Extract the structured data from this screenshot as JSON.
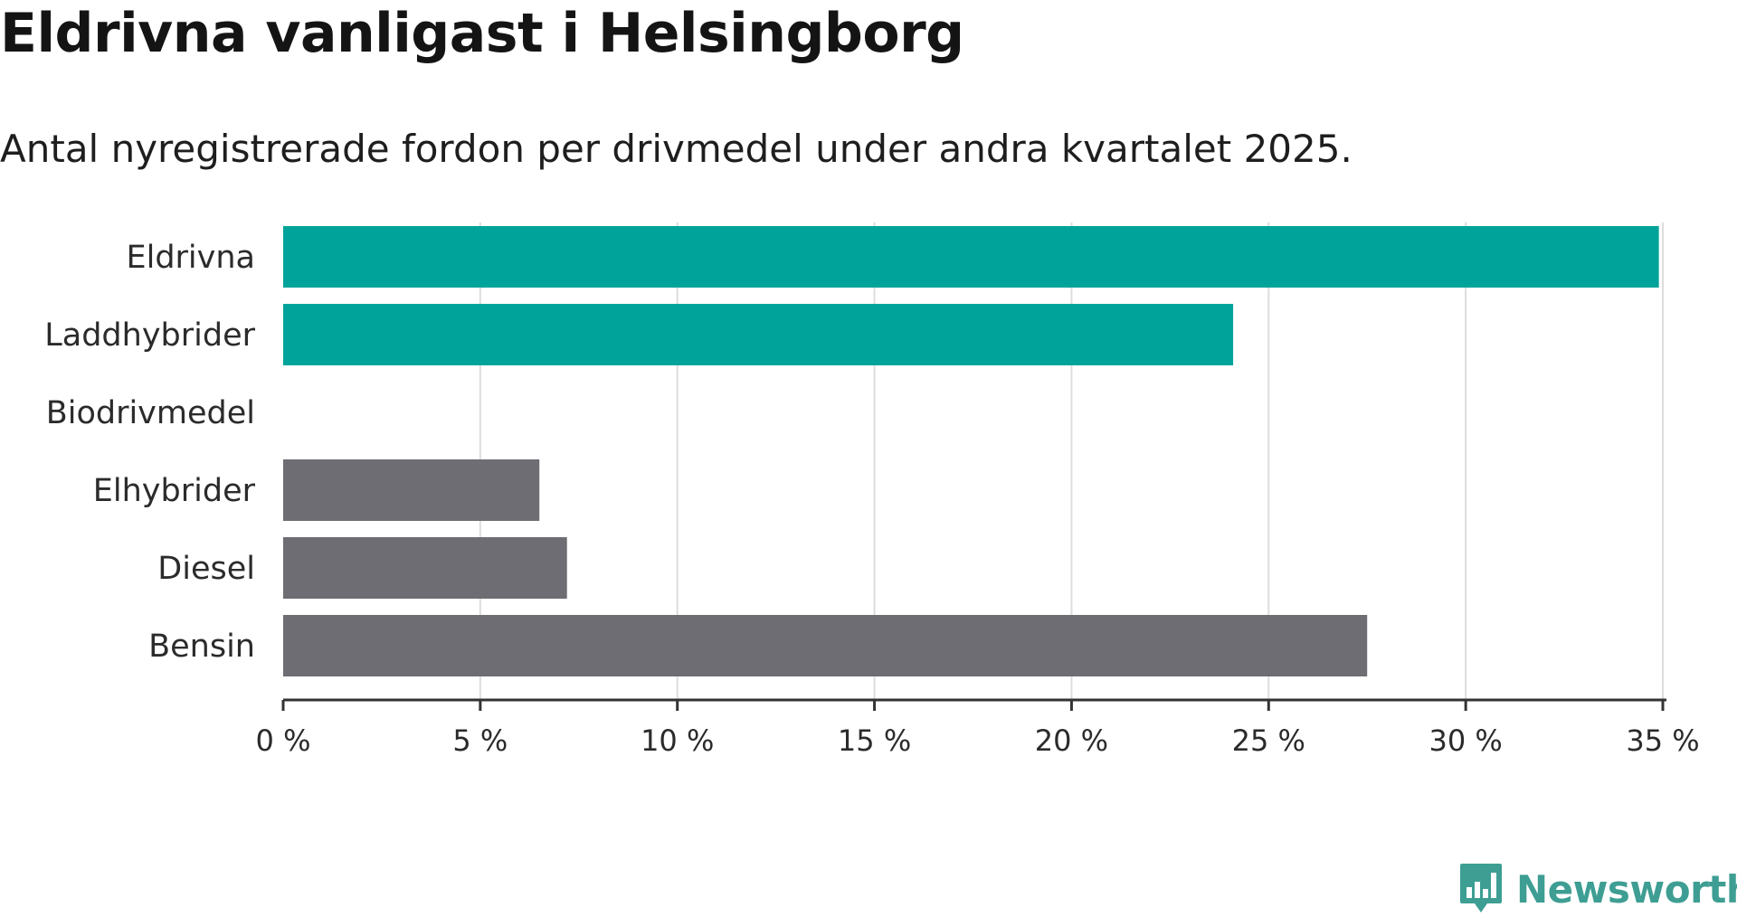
{
  "title": "Eldrivna vanligast i Helsingborg",
  "subtitle": "Antal nyregistrerade fordon per drivmedel under andra kvartalet 2025.",
  "brand": {
    "name": "Newsworthy",
    "color": "#3e9e93",
    "icon": "newsworthy-logo-icon"
  },
  "colors": {
    "highlight": "#00a39a",
    "default": "#6e6d73",
    "grid": "#dddddd",
    "axis": "#333333"
  },
  "chart_data": {
    "type": "bar",
    "orientation": "horizontal",
    "categories": [
      "Eldrivna",
      "Laddhybrider",
      "Biodrivmedel",
      "Elhybrider",
      "Diesel",
      "Bensin"
    ],
    "values": [
      34.9,
      24.1,
      0,
      6.5,
      7.2,
      27.5
    ],
    "highlighted": [
      true,
      true,
      false,
      false,
      false,
      false
    ],
    "unit": "%",
    "xlim": [
      0,
      35
    ],
    "ticks": [
      0,
      5,
      10,
      15,
      20,
      25,
      30,
      35
    ],
    "tick_labels": [
      "0 %",
      "5 %",
      "10 %",
      "15 %",
      "20 %",
      "25 %",
      "30 %",
      "35 %"
    ],
    "grid": true
  }
}
